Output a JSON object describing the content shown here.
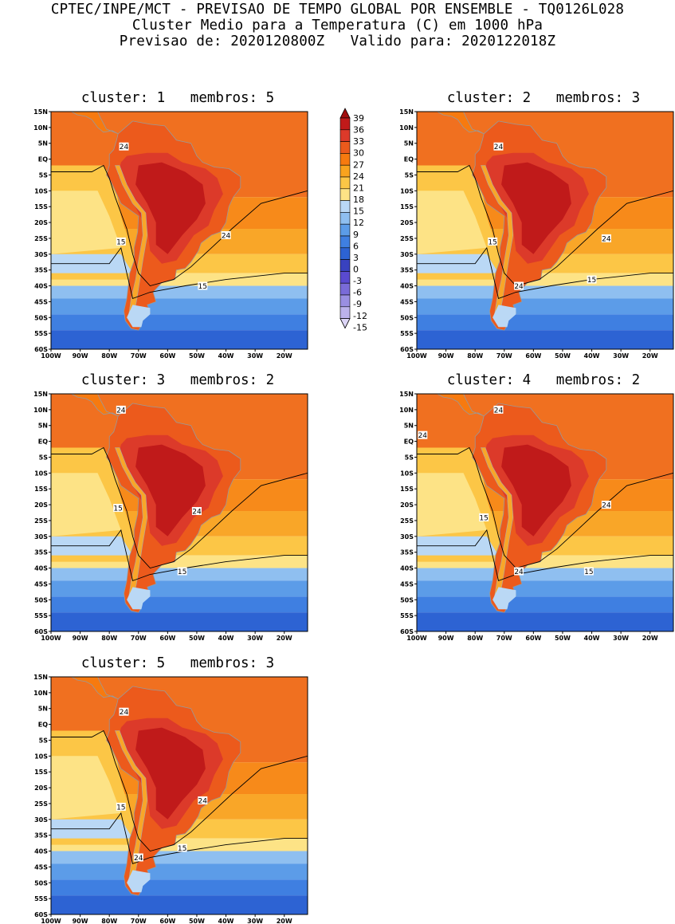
{
  "header": {
    "line1": "CPTEC/INPE/MCT - PREVISAO DE TEMPO GLOBAL POR ENSEMBLE - TQ0126L028",
    "line2": "Cluster Medio para a Temperatura (C) em 1000 hPa",
    "line3": "Previsao de: 2020120800Z   Valido para: 2020122018Z"
  },
  "axes": {
    "lat_labels": [
      "15N",
      "10N",
      "5N",
      "EQ",
      "5S",
      "10S",
      "15S",
      "20S",
      "25S",
      "30S",
      "35S",
      "40S",
      "45S",
      "50S",
      "55S",
      "60S"
    ],
    "lon_labels": [
      "100W",
      "90W",
      "80W",
      "70W",
      "60W",
      "50W",
      "40W",
      "30W",
      "20W"
    ]
  },
  "colorbar": {
    "labels": [
      "39",
      "36",
      "33",
      "30",
      "27",
      "24",
      "21",
      "18",
      "15",
      "12",
      "9",
      "6",
      "3",
      "0",
      "-3",
      "-6",
      "-9",
      "-12",
      "-15"
    ],
    "colors": [
      "#a00c0c",
      "#c01a1a",
      "#dc3a2a",
      "#ec5a1c",
      "#f77a0f",
      "#f9a31e",
      "#fcc646",
      "#fde386",
      "#bad8f5",
      "#8fbff0",
      "#5c9ce8",
      "#3f7fe1",
      "#2d63d3",
      "#3942bf",
      "#5a4ad0",
      "#7a6bd8",
      "#9a8fe2",
      "#bcb2ec",
      "#ddd6f7"
    ]
  },
  "panels": [
    {
      "title": "cluster: 1   membros: 5",
      "labels": [
        {
          "text": "24",
          "lat": 4,
          "lon": -75
        },
        {
          "text": "24",
          "lat": -24,
          "lon": -40
        },
        {
          "text": "15",
          "lat": -26,
          "lon": -76
        },
        {
          "text": "15",
          "lat": -40,
          "lon": -48
        }
      ]
    },
    {
      "title": "cluster: 2   membros: 3",
      "labels": [
        {
          "text": "24",
          "lat": 4,
          "lon": -72
        },
        {
          "text": "24",
          "lat": -25,
          "lon": -35
        },
        {
          "text": "15",
          "lat": -26,
          "lon": -74
        },
        {
          "text": "15",
          "lat": -38,
          "lon": -40
        },
        {
          "text": "24",
          "lat": -40,
          "lon": -65
        }
      ]
    },
    {
      "title": "cluster: 3   membros: 2",
      "labels": [
        {
          "text": "24",
          "lat": 10,
          "lon": -76
        },
        {
          "text": "24",
          "lat": -22,
          "lon": -50
        },
        {
          "text": "15",
          "lat": -21,
          "lon": -77
        },
        {
          "text": "15",
          "lat": -41,
          "lon": -55
        }
      ]
    },
    {
      "title": "cluster: 4   membros: 2",
      "labels": [
        {
          "text": "24",
          "lat": 10,
          "lon": -72
        },
        {
          "text": "24",
          "lat": 2,
          "lon": -98
        },
        {
          "text": "24",
          "lat": -20,
          "lon": -35
        },
        {
          "text": "15",
          "lat": -24,
          "lon": -77
        },
        {
          "text": "15",
          "lat": -41,
          "lon": -41
        },
        {
          "text": "24",
          "lat": -41,
          "lon": -65
        }
      ]
    },
    {
      "title": "cluster: 5   membros: 3",
      "labels": [
        {
          "text": "24",
          "lat": 4,
          "lon": -75
        },
        {
          "text": "24",
          "lat": -24,
          "lon": -48
        },
        {
          "text": "15",
          "lat": -26,
          "lon": -76
        },
        {
          "text": "15",
          "lat": -39,
          "lon": -55
        },
        {
          "text": "24",
          "lat": -42,
          "lon": -70
        }
      ]
    }
  ]
}
